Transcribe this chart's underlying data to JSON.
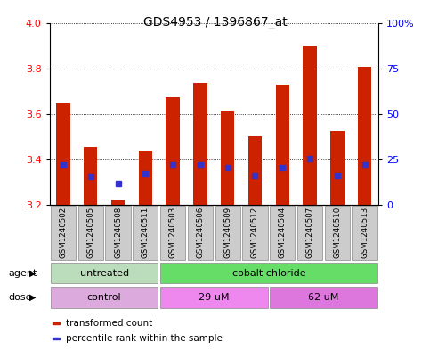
{
  "title": "GDS4953 / 1396867_at",
  "samples": [
    "GSM1240502",
    "GSM1240505",
    "GSM1240508",
    "GSM1240511",
    "GSM1240503",
    "GSM1240506",
    "GSM1240509",
    "GSM1240512",
    "GSM1240504",
    "GSM1240507",
    "GSM1240510",
    "GSM1240513"
  ],
  "bar_bottoms": [
    3.2,
    3.2,
    3.2,
    3.2,
    3.2,
    3.2,
    3.2,
    3.2,
    3.2,
    3.2,
    3.2,
    3.2
  ],
  "bar_tops": [
    3.645,
    3.455,
    3.22,
    3.44,
    3.675,
    3.735,
    3.61,
    3.5,
    3.73,
    3.895,
    3.525,
    3.805
  ],
  "percentile_values": [
    3.375,
    3.325,
    3.295,
    3.335,
    3.375,
    3.375,
    3.365,
    3.33,
    3.365,
    3.405,
    3.33,
    3.375
  ],
  "ylim_left": [
    3.2,
    4.0
  ],
  "ylim_right": [
    0,
    100
  ],
  "yticks_left": [
    3.2,
    3.4,
    3.6,
    3.8,
    4.0
  ],
  "yticks_right": [
    0,
    25,
    50,
    75,
    100
  ],
  "ytick_labels_right": [
    "0",
    "25",
    "50",
    "75",
    "100%"
  ],
  "bar_color": "#cc2200",
  "blue_color": "#3333cc",
  "bg_color": "#ffffff",
  "agent_groups": [
    {
      "label": "untreated",
      "start": 0,
      "end": 4,
      "color": "#bbddbb"
    },
    {
      "label": "cobalt chloride",
      "start": 4,
      "end": 12,
      "color": "#66dd66"
    }
  ],
  "dose_groups": [
    {
      "label": "control",
      "start": 0,
      "end": 4,
      "color": "#ddaadd"
    },
    {
      "label": "29 uM",
      "start": 4,
      "end": 8,
      "color": "#ee88ee"
    },
    {
      "label": "62 uM",
      "start": 8,
      "end": 12,
      "color": "#dd77dd"
    }
  ],
  "agent_label": "agent",
  "dose_label": "dose",
  "legend_items": [
    {
      "label": "transformed count",
      "color": "#cc2200"
    },
    {
      "label": "percentile rank within the sample",
      "color": "#3333cc"
    }
  ],
  "bar_width": 0.5
}
